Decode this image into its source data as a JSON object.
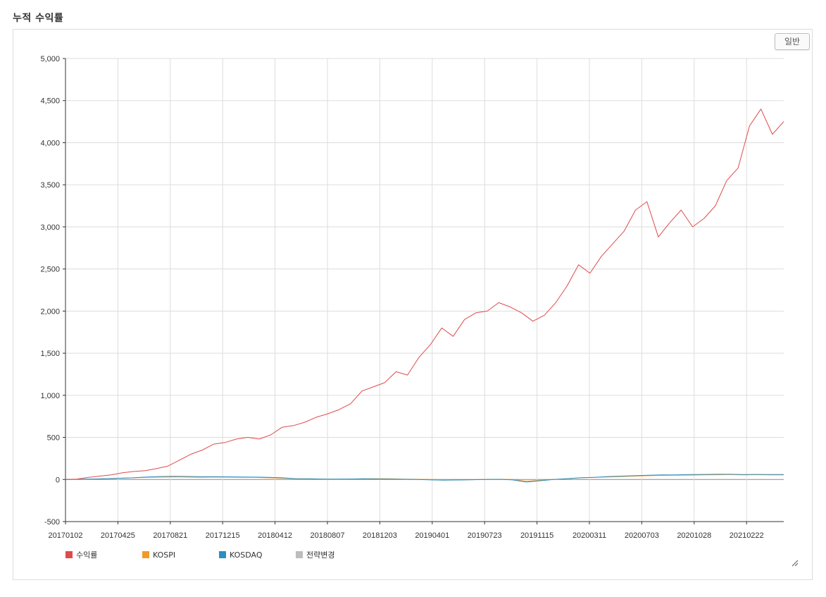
{
  "header": {
    "title": "누적 수익률"
  },
  "toolbar": {
    "mode_label": "일반"
  },
  "colors": {
    "returns": "#e04a4a",
    "kospi": "#f29a28",
    "kosdaq": "#2a8fc4",
    "strategy_change": "#bdbdbd",
    "grid": "#dddddd"
  },
  "chart_data": {
    "type": "line",
    "title": "누적 수익률",
    "xlabel": "",
    "ylabel": "",
    "ylim": [
      -500,
      5000
    ],
    "y_ticks": [
      "5,000",
      "4,500",
      "4,000",
      "3,500",
      "3,000",
      "2,500",
      "2,000",
      "1,500",
      "1,000",
      "500",
      "0",
      "-500"
    ],
    "x_tick_labels": [
      "20170102",
      "20170425",
      "20170821",
      "20171215",
      "20180412",
      "20180807",
      "20181203",
      "20190401",
      "20190723",
      "20191115",
      "20200311",
      "20200703",
      "20201028",
      "20210222"
    ],
    "grid": true,
    "legend_position": "bottom-left",
    "series": [
      {
        "name": "수익률",
        "color_key": "returns",
        "values": [
          0,
          5,
          25,
          40,
          55,
          80,
          95,
          105,
          130,
          160,
          230,
          300,
          350,
          420,
          440,
          480,
          500,
          480,
          530,
          620,
          640,
          680,
          740,
          780,
          830,
          900,
          1050,
          1100,
          1150,
          1280,
          1240,
          1450,
          1600,
          1800,
          1700,
          1900,
          1980,
          2000,
          2100,
          2050,
          1980,
          1880,
          1950,
          2100,
          2300,
          2550,
          2450,
          2650,
          2800,
          2950,
          3200,
          3300,
          2880,
          3050,
          3200,
          3000,
          3100,
          3250,
          3550,
          3700,
          4200,
          4400,
          4100,
          4250
        ]
      },
      {
        "name": "KOSPI",
        "color_key": "kospi",
        "values": [
          0,
          2,
          5,
          10,
          15,
          20,
          25,
          28,
          30,
          28,
          25,
          28,
          27,
          26,
          25,
          20,
          15,
          10,
          8,
          5,
          3,
          5,
          8,
          10,
          8,
          5,
          2,
          0,
          -3,
          -5,
          -3,
          0,
          2,
          0,
          -20,
          -10,
          0,
          10,
          20,
          25,
          30,
          35,
          40,
          45,
          48,
          50,
          52,
          55,
          56,
          58,
          55,
          57,
          55,
          55
        ]
      },
      {
        "name": "KOSDAQ",
        "color_key": "kosdaq",
        "values": [
          0,
          2,
          6,
          10,
          15,
          20,
          30,
          35,
          38,
          36,
          34,
          33,
          32,
          30,
          28,
          25,
          20,
          10,
          8,
          5,
          5,
          6,
          8,
          6,
          5,
          2,
          0,
          -5,
          -8,
          -6,
          -3,
          0,
          2,
          -5,
          -30,
          -15,
          0,
          10,
          20,
          25,
          35,
          40,
          45,
          50,
          55,
          55,
          58,
          60,
          62,
          62,
          58,
          60,
          58,
          58
        ]
      },
      {
        "name": "전략변경",
        "color_key": "strategy_change",
        "values": []
      }
    ]
  }
}
